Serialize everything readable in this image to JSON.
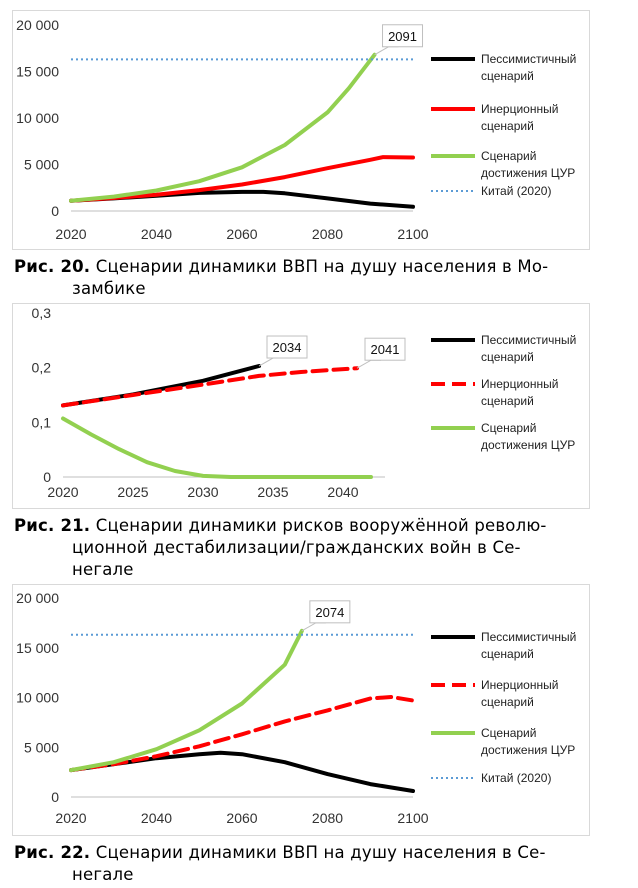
{
  "charts": [
    {
      "type": "line",
      "x": [
        2020,
        2030,
        2040,
        2050,
        2060,
        2070,
        2080,
        2090,
        2100
      ],
      "xlim": [
        2020,
        2100
      ],
      "ylim": [
        0,
        20000
      ],
      "xticks": [
        2020,
        2040,
        2060,
        2080,
        2100
      ],
      "xtick_labels": [
        "2020",
        "2040",
        "2060",
        "2080",
        "2100"
      ],
      "yticks": [
        0,
        5000,
        10000,
        15000,
        20000
      ],
      "ytick_labels": [
        "0",
        "5 000",
        "10 000",
        "15 000",
        "20 000"
      ],
      "legend": [
        {
          "label": "Пессимистичный сценарий",
          "lines": [
            "Пессимистичный",
            "сценарий"
          ],
          "color": "#000000",
          "style": "solid"
        },
        {
          "label": "Инерционный сценарий",
          "lines": [
            "Инерционный",
            "сценарий"
          ],
          "color": "#ff0000",
          "style": "solid"
        },
        {
          "label": "Сценарий достижения ЦУР",
          "lines": [
            "Сценарий",
            "достижения ЦУР"
          ],
          "color": "#92d050",
          "style": "solid"
        },
        {
          "label": "Китай (2020)",
          "lines": [
            "Китай (2020)"
          ],
          "color": "#5b9bd5",
          "style": "dotted"
        }
      ],
      "series": [
        {
          "name": "Пессимистичный сценарий",
          "color": "#000000",
          "style": "solid",
          "points": [
            [
              2020,
              1100
            ],
            [
              2030,
              1350
            ],
            [
              2040,
              1650
            ],
            [
              2050,
              1950
            ],
            [
              2060,
              2050
            ],
            [
              2065,
              2050
            ],
            [
              2070,
              1900
            ],
            [
              2080,
              1350
            ],
            [
              2090,
              800
            ],
            [
              2100,
              450
            ]
          ]
        },
        {
          "name": "Инерционный сценарий",
          "color": "#ff0000",
          "style": "solid",
          "points": [
            [
              2020,
              1100
            ],
            [
              2030,
              1400
            ],
            [
              2040,
              1750
            ],
            [
              2050,
              2250
            ],
            [
              2060,
              2850
            ],
            [
              2070,
              3650
            ],
            [
              2080,
              4600
            ],
            [
              2090,
              5500
            ],
            [
              2093,
              5800
            ],
            [
              2100,
              5750
            ]
          ]
        },
        {
          "name": "Сценарий достижения ЦУР",
          "color": "#92d050",
          "style": "solid",
          "points": [
            [
              2020,
              1100
            ],
            [
              2030,
              1550
            ],
            [
              2040,
              2200
            ],
            [
              2050,
              3200
            ],
            [
              2060,
              4700
            ],
            [
              2070,
              7100
            ],
            [
              2080,
              10600
            ],
            [
              2085,
              13200
            ],
            [
              2091,
              16800
            ]
          ]
        },
        {
          "name": "Китай (2020)",
          "color": "#5b9bd5",
          "style": "dotted",
          "points": [
            [
              2020,
              16300
            ],
            [
              2100,
              16300
            ]
          ]
        }
      ],
      "annotations": [
        {
          "text": "2091",
          "x": 2091,
          "y": 16800
        }
      ]
    },
    {
      "type": "line",
      "x": [
        2020,
        2025,
        2030,
        2035,
        2040
      ],
      "xlim": [
        2020,
        2043
      ],
      "ylim": [
        0,
        0.3
      ],
      "xticks": [
        2020,
        2025,
        2030,
        2035,
        2040
      ],
      "xtick_labels": [
        "2020",
        "2025",
        "2030",
        "2035",
        "2040"
      ],
      "yticks": [
        0,
        0.1,
        0.2,
        0.3
      ],
      "ytick_labels": [
        "0",
        "0,1",
        "0,2",
        "0,3"
      ],
      "legend": [
        {
          "label": "Пессимистичный сценарий",
          "lines": [
            "Пессимистичный",
            "сценарий"
          ],
          "color": "#000000",
          "style": "solid"
        },
        {
          "label": "Инерционный сценарий",
          "lines": [
            "Инерционный",
            "сценарий"
          ],
          "color": "#ff0000",
          "style": "dashed"
        },
        {
          "label": "Сценарий достижения ЦУР",
          "lines": [
            "Сценарий",
            "достижения ЦУР"
          ],
          "color": "#92d050",
          "style": "solid"
        }
      ],
      "series": [
        {
          "name": "Пессимистичный сценарий",
          "color": "#000000",
          "style": "solid",
          "points": [
            [
              2020,
              0.131
            ],
            [
              2025,
              0.151
            ],
            [
              2030,
              0.176
            ],
            [
              2034,
              0.203
            ]
          ]
        },
        {
          "name": "Инерционный сценарий",
          "color": "#ff0000",
          "style": "dashed",
          "points": [
            [
              2020,
              0.131
            ],
            [
              2025,
              0.15
            ],
            [
              2030,
              0.169
            ],
            [
              2034,
              0.185
            ],
            [
              2037,
              0.192
            ],
            [
              2041,
              0.199
            ]
          ]
        },
        {
          "name": "Сценарий достижения ЦУР",
          "color": "#92d050",
          "style": "solid",
          "points": [
            [
              2020,
              0.107
            ],
            [
              2022,
              0.078
            ],
            [
              2024,
              0.051
            ],
            [
              2026,
              0.027
            ],
            [
              2028,
              0.011
            ],
            [
              2030,
              0.002
            ],
            [
              2032,
              0
            ],
            [
              2042,
              0
            ]
          ]
        }
      ],
      "annotations": [
        {
          "text": "2034",
          "x": 2034,
          "y": 0.203
        },
        {
          "text": "2041",
          "x": 2041,
          "y": 0.199
        }
      ]
    },
    {
      "type": "line",
      "x": [
        2020,
        2030,
        2040,
        2050,
        2060,
        2070,
        2080,
        2090,
        2100
      ],
      "xlim": [
        2020,
        2100
      ],
      "ylim": [
        0,
        20000
      ],
      "xticks": [
        2020,
        2040,
        2060,
        2080,
        2100
      ],
      "xtick_labels": [
        "2020",
        "2040",
        "2060",
        "2080",
        "2100"
      ],
      "yticks": [
        0,
        5000,
        10000,
        15000,
        20000
      ],
      "ytick_labels": [
        "0",
        "5 000",
        "10 000",
        "15 000",
        "20 000"
      ],
      "legend": [
        {
          "label": "Пессимистичный сценарий",
          "lines": [
            "Пессимистичный",
            "сценарий"
          ],
          "color": "#000000",
          "style": "solid"
        },
        {
          "label": "Инерционный сценарий",
          "lines": [
            "Инерционный",
            "сценарий"
          ],
          "color": "#ff0000",
          "style": "dashed"
        },
        {
          "label": "Сценарий достижения ЦУР",
          "lines": [
            "Сценарий",
            "достижения ЦУР"
          ],
          "color": "#92d050",
          "style": "solid"
        },
        {
          "label": "Китай (2020)",
          "lines": [
            "Китай (2020)"
          ],
          "color": "#5b9bd5",
          "style": "dotted"
        }
      ],
      "series": [
        {
          "name": "Пессимистичный сценарий",
          "color": "#000000",
          "style": "solid",
          "points": [
            [
              2020,
              2700
            ],
            [
              2030,
              3300
            ],
            [
              2040,
              3900
            ],
            [
              2050,
              4300
            ],
            [
              2055,
              4450
            ],
            [
              2060,
              4300
            ],
            [
              2070,
              3500
            ],
            [
              2080,
              2300
            ],
            [
              2090,
              1300
            ],
            [
              2100,
              600
            ]
          ]
        },
        {
          "name": "Инерционный сценарий",
          "color": "#ff0000",
          "style": "dashed",
          "points": [
            [
              2020,
              2700
            ],
            [
              2030,
              3300
            ],
            [
              2040,
              4100
            ],
            [
              2050,
              5100
            ],
            [
              2060,
              6300
            ],
            [
              2070,
              7600
            ],
            [
              2080,
              8700
            ],
            [
              2090,
              9900
            ],
            [
              2095,
              10050
            ],
            [
              2100,
              9700
            ]
          ]
        },
        {
          "name": "Сценарий достижения ЦУР",
          "color": "#92d050",
          "style": "solid",
          "points": [
            [
              2020,
              2700
            ],
            [
              2030,
              3500
            ],
            [
              2040,
              4800
            ],
            [
              2050,
              6700
            ],
            [
              2060,
              9400
            ],
            [
              2070,
              13300
            ],
            [
              2074,
              16700
            ]
          ]
        },
        {
          "name": "Китай (2020)",
          "color": "#5b9bd5",
          "style": "dotted",
          "points": [
            [
              2020,
              16300
            ],
            [
              2100,
              16300
            ]
          ]
        }
      ],
      "annotations": [
        {
          "text": "2074",
          "x": 2074,
          "y": 16700
        }
      ]
    }
  ],
  "captions": [
    {
      "label": "Рис. 20.",
      "text": " Сценарии динамики ВВП на душу населения в Мо-",
      "cont": "замбике"
    },
    {
      "label": "Рис. 21.",
      "text": " Сценарии динамики рисков вооружённой револю-",
      "cont": "ционной дестабилизации/гражданских войн в Се-",
      "cont2": "негале"
    },
    {
      "label": "Рис. 22.",
      "text": " Сценарии динамики ВВП на душу населения в Се-",
      "cont": "негале"
    }
  ]
}
